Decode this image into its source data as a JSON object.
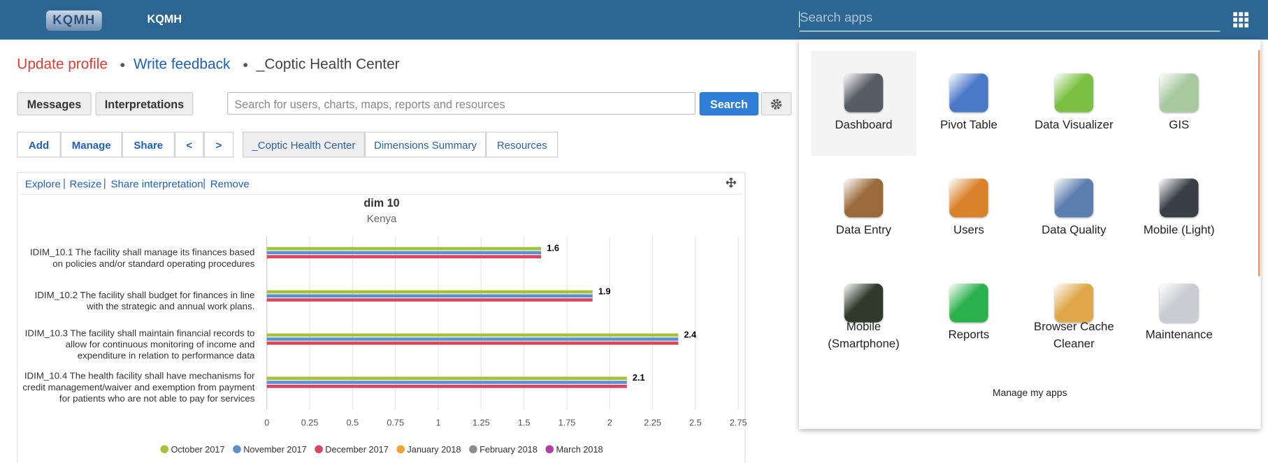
{
  "header": {
    "brand": "KQMH",
    "search_placeholder": "Search apps"
  },
  "profile_links": [
    "Update profile",
    "Write feedback",
    "_Coptic Health Center"
  ],
  "buttons": [
    "Messages",
    "Interpretations"
  ],
  "search": {
    "placeholder": "Search for users, charts, maps, reports and resources",
    "button": "Search"
  },
  "toolbar": [
    "Add",
    "Manage",
    "Share",
    "<",
    ">"
  ],
  "dashboards": [
    "_Coptic Health Center",
    "Dimensions Summary",
    "Resources"
  ],
  "item_actions": [
    "Explore",
    "Resize",
    "Share interpretation",
    "Remove"
  ],
  "chart_data": {
    "type": "bar",
    "orientation": "horizontal",
    "title": "dim 10",
    "subtitle": "Kenya",
    "categories": [
      "IDIM_10.1 The facility shall manage its finances based on policies and/or standard operating procedures",
      "IDIM_10.2 The facility shall budget for finances in line with the strategic and annual work plans.",
      "IDIM_10.3 The facility shall maintain financial records to allow for continuous monitoring of income and expenditure in relation to performance data",
      "IDIM_10.4 The health facility shall have mechanisms for credit management/waiver and exemption from payment for patients who are not able to pay for services"
    ],
    "series": [
      {
        "name": "October 2017",
        "color": "#a6c23b",
        "values": [
          1.6,
          1.9,
          2.4,
          2.1
        ]
      },
      {
        "name": "November 2017",
        "color": "#5b8fd1",
        "values": [
          1.6,
          1.9,
          2.4,
          2.1
        ]
      },
      {
        "name": "December 2017",
        "color": "#d9465b",
        "values": [
          1.6,
          1.9,
          2.4,
          2.1
        ]
      },
      {
        "name": "January 2018",
        "color": "#f5a034",
        "values": [
          null,
          null,
          null,
          null
        ]
      },
      {
        "name": "February 2018",
        "color": "#8c8c8c",
        "values": [
          null,
          null,
          null,
          null
        ]
      },
      {
        "name": "March 2018",
        "color": "#b73aa5",
        "values": [
          null,
          null,
          null,
          null
        ]
      }
    ],
    "xlim": [
      0,
      2.75
    ],
    "xticks": [
      0,
      0.25,
      0.5,
      0.75,
      1,
      1.25,
      1.5,
      1.75,
      2,
      2.25,
      2.5,
      2.75
    ],
    "grid": true,
    "legend": "bottom"
  },
  "apps": [
    "Dashboard",
    "Pivot Table",
    "Data Visualizer",
    "GIS",
    "Data Entry",
    "Users",
    "Data Quality",
    "Mobile (Light)",
    "Mobile (Smartphone)",
    "Reports",
    "Browser Cache Cleaner",
    "Maintenance"
  ],
  "manage_apps": "Manage my apps"
}
